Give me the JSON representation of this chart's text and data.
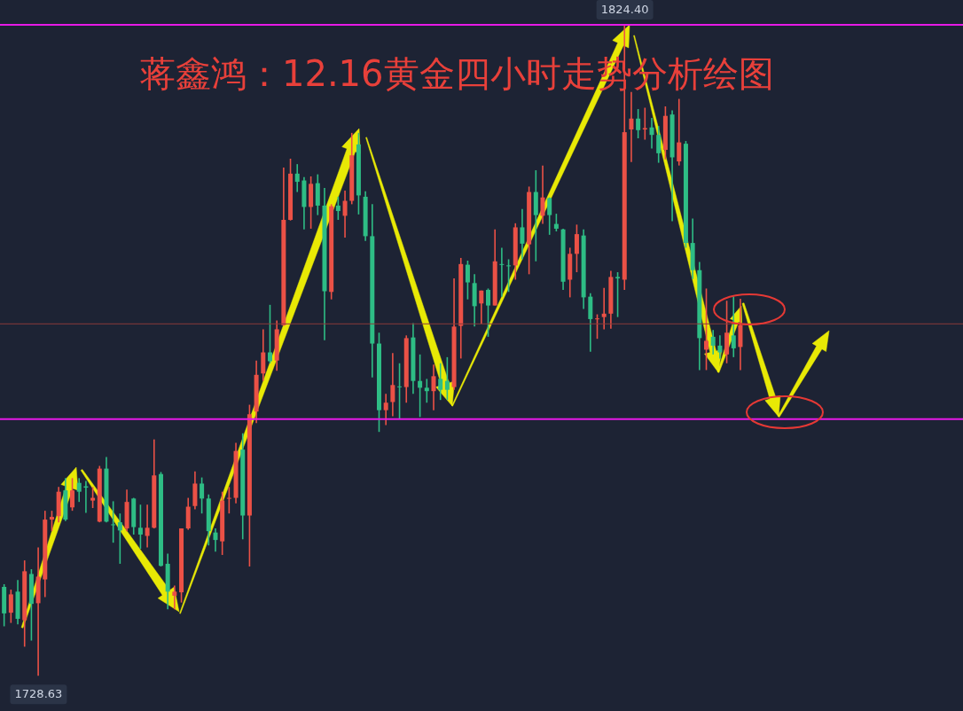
{
  "chart_data": {
    "type": "candlestick",
    "title": "蒋鑫鸿：12.16黄金四小时走势分析绘图",
    "categories": [
      null,
      null,
      null,
      null,
      null,
      null,
      null,
      null,
      null,
      null,
      null,
      null,
      null,
      null,
      null,
      null,
      null,
      null,
      null,
      null,
      null,
      null,
      null,
      null,
      null,
      null,
      null,
      null,
      null,
      null,
      null,
      null,
      null,
      null,
      null,
      null,
      null,
      null,
      null,
      null,
      null,
      null,
      null,
      null,
      null,
      null,
      null,
      null,
      null,
      null,
      null,
      null,
      null,
      null,
      null,
      null,
      null,
      null,
      null,
      null,
      null,
      null,
      null,
      null,
      null,
      null,
      null,
      null,
      null,
      null,
      null,
      null,
      null,
      null,
      null,
      null,
      null,
      null,
      null,
      null,
      null,
      null,
      null,
      null,
      null,
      null,
      null,
      null,
      null,
      null,
      null,
      null,
      null,
      null,
      null,
      null,
      null,
      null,
      null,
      null,
      null,
      null,
      null,
      null,
      null,
      null,
      null,
      null,
      null
    ],
    "ohlc": [
      [
        1741.7,
        1742.1,
        1735.9,
        1737.8
      ],
      [
        1737.9,
        1741.3,
        1736.4,
        1740.6
      ],
      [
        1741.0,
        1742.7,
        1736.2,
        1737.0
      ],
      [
        1736.8,
        1745.6,
        1732.9,
        1744.0
      ],
      [
        1743.6,
        1744.3,
        1733.8,
        1739.2
      ],
      [
        1739.3,
        1747.5,
        1728.63,
        1743.2
      ],
      [
        1742.8,
        1752.9,
        1740.2,
        1751.6
      ],
      [
        1751.6,
        1752.9,
        1749.9,
        1752.0
      ],
      [
        1752.1,
        1756.4,
        1751.2,
        1755.7
      ],
      [
        1755.9,
        1757.7,
        1751.4,
        1751.6
      ],
      [
        1753.4,
        1757.7,
        1752.9,
        1755.9
      ],
      [
        1757.0,
        1757.7,
        1754.2,
        1755.7
      ],
      [
        1756.5,
        1757.3,
        1752.6,
        1756.3
      ],
      [
        1754.4,
        1756.4,
        1753.3,
        1754.8
      ],
      [
        1751.3,
        1759.5,
        1751.2,
        1759.1
      ],
      [
        1759.1,
        1760.8,
        1751.2,
        1751.3
      ],
      [
        1750.9,
        1754.3,
        1748.2,
        1750.8
      ],
      [
        1751.2,
        1752.5,
        1745.1,
        1750.0
      ],
      [
        1750.3,
        1756.0,
        1749.9,
        1754.2
      ],
      [
        1754.7,
        1754.8,
        1749.4,
        1750.5
      ],
      [
        1750.4,
        1753.8,
        1747.3,
        1749.4
      ],
      [
        1749.2,
        1753.8,
        1747.5,
        1750.4
      ],
      [
        1750.4,
        1763.4,
        1750.3,
        1758.1
      ],
      [
        1758.3,
        1758.6,
        1744.7,
        1744.8
      ],
      [
        1745.1,
        1746.6,
        1738.4,
        1741.0
      ],
      [
        1740.4,
        1741.9,
        1738.4,
        1741.0
      ],
      [
        1740.9,
        1750.3,
        1739.4,
        1750.3
      ],
      [
        1750.3,
        1754.8,
        1750.1,
        1753.5
      ],
      [
        1753.6,
        1758.7,
        1753.1,
        1756.9
      ],
      [
        1756.9,
        1757.8,
        1752.5,
        1754.7
      ],
      [
        1754.7,
        1755.3,
        1747.8,
        1749.9
      ],
      [
        1749.7,
        1750.3,
        1746.9,
        1748.6
      ],
      [
        1748.4,
        1755.7,
        1746.4,
        1754.4
      ],
      [
        1754.7,
        1756.4,
        1752.5,
        1754.8
      ],
      [
        1754.8,
        1762.9,
        1754.0,
        1761.7
      ],
      [
        1761.9,
        1764.3,
        1748.7,
        1752.2
      ],
      [
        1752.2,
        1768.5,
        1744.7,
        1767.1
      ],
      [
        1767.5,
        1775.0,
        1765.8,
        1772.9
      ],
      [
        1773.1,
        1779.6,
        1772.0,
        1776.2
      ],
      [
        1776.2,
        1783.2,
        1774.6,
        1774.9
      ],
      [
        1775.0,
        1780.9,
        1773.5,
        1779.6
      ],
      [
        1780.2,
        1803.4,
        1780.1,
        1795.7
      ],
      [
        1795.7,
        1804.7,
        1795.6,
        1802.5
      ],
      [
        1802.5,
        1803.9,
        1799.8,
        1801.3
      ],
      [
        1801.5,
        1802.0,
        1794.3,
        1797.6
      ],
      [
        1797.6,
        1802.1,
        1794.4,
        1801.0
      ],
      [
        1801.1,
        1802.4,
        1796.4,
        1797.8
      ],
      [
        1797.8,
        1800.4,
        1778.0,
        1785.2
      ],
      [
        1785.1,
        1798.0,
        1784.0,
        1797.7
      ],
      [
        1797.8,
        1799.1,
        1795.7,
        1797.0
      ],
      [
        1796.3,
        1800.0,
        1793.1,
        1798.5
      ],
      [
        1798.5,
        1808.5,
        1798.0,
        1805.2
      ],
      [
        1806.8,
        1808.5,
        1796.5,
        1799.3
      ],
      [
        1799.1,
        1799.9,
        1792.6,
        1793.3
      ],
      [
        1793.3,
        1798.0,
        1772.5,
        1777.5
      ],
      [
        1777.5,
        1779.1,
        1764.5,
        1767.7
      ],
      [
        1767.7,
        1770.1,
        1765.5,
        1768.8
      ],
      [
        1768.9,
        1776.1,
        1766.8,
        1771.4
      ],
      [
        1771.2,
        1774.6,
        1766.4,
        1771.1
      ],
      [
        1771.1,
        1778.7,
        1768.8,
        1778.3
      ],
      [
        1778.4,
        1780.5,
        1770.1,
        1772.0
      ],
      [
        1772.0,
        1775.9,
        1766.7,
        1771.0
      ],
      [
        1771.0,
        1772.3,
        1768.8,
        1770.5
      ],
      [
        1770.5,
        1774.4,
        1767.7,
        1772.7
      ],
      [
        1772.3,
        1774.6,
        1769.2,
        1770.7
      ],
      [
        1772.0,
        1775.5,
        1769.2,
        1770.7
      ],
      [
        1771.1,
        1787.1,
        1770.7,
        1780.0
      ],
      [
        1780.1,
        1790.1,
        1775.3,
        1789.2
      ],
      [
        1789.1,
        1789.7,
        1784.0,
        1786.5
      ],
      [
        1786.4,
        1787.7,
        1780.0,
        1783.0
      ],
      [
        1783.4,
        1785.3,
        1780.4,
        1785.3
      ],
      [
        1785.4,
        1785.6,
        1778.5,
        1783.1
      ],
      [
        1783.1,
        1794.3,
        1783.1,
        1789.6
      ],
      [
        1789.2,
        1791.6,
        1784.4,
        1789.1
      ],
      [
        1789.0,
        1789.9,
        1785.1,
        1788.9
      ],
      [
        1789.0,
        1795.2,
        1786.9,
        1794.6
      ],
      [
        1794.6,
        1797.3,
        1789.9,
        1792.2
      ],
      [
        1792.1,
        1800.6,
        1787.7,
        1799.8
      ],
      [
        1799.8,
        1803.0,
        1789.6,
        1796.4
      ],
      [
        1796.3,
        1803.7,
        1795.1,
        1799.0
      ],
      [
        1798.9,
        1799.0,
        1793.5,
        1796.4
      ],
      [
        1795.1,
        1796.6,
        1794.0,
        1794.4
      ],
      [
        1794.3,
        1794.4,
        1785.4,
        1786.6
      ],
      [
        1786.9,
        1791.6,
        1784.3,
        1790.7
      ],
      [
        1790.7,
        1795.0,
        1788.0,
        1793.6
      ],
      [
        1793.4,
        1794.3,
        1782.6,
        1784.3
      ],
      [
        1784.4,
        1784.9,
        1776.3,
        1781.1
      ],
      [
        1781.1,
        1781.8,
        1778.2,
        1781.2
      ],
      [
        1781.4,
        1785.7,
        1779.6,
        1781.9
      ],
      [
        1781.9,
        1788.2,
        1779.7,
        1787.3
      ],
      [
        1787.3,
        1788.0,
        1781.4,
        1787.1
      ],
      [
        1786.9,
        1824.4,
        1785.4,
        1808.6
      ],
      [
        1809.0,
        1814.5,
        1804.2,
        1810.6
      ],
      [
        1810.6,
        1812.0,
        1807.7,
        1808.9
      ],
      [
        1809.0,
        1812.2,
        1807.5,
        1809.2
      ],
      [
        1809.3,
        1810.7,
        1806.2,
        1808.2
      ],
      [
        1808.2,
        1809.5,
        1804.1,
        1805.5
      ],
      [
        1806.0,
        1812.4,
        1804.6,
        1811.0
      ],
      [
        1811.2,
        1811.8,
        1795.5,
        1804.9
      ],
      [
        1804.3,
        1813.5,
        1803.7,
        1807.1
      ],
      [
        1806.9,
        1807.3,
        1791.6,
        1792.3
      ],
      [
        1792.3,
        1795.9,
        1787.0,
        1788.3
      ],
      [
        1788.3,
        1789.5,
        1773.6,
        1778.3
      ],
      [
        1776.6,
        1785.6,
        1773.6,
        1777.9
      ],
      [
        1778.5,
        1779.5,
        1775.9,
        1777.2
      ],
      [
        1777.2,
        1778.7,
        1775.3,
        1776.2
      ],
      [
        1775.9,
        1783.8,
        1774.6,
        1779.1
      ],
      [
        1778.7,
        1784.4,
        1775.5,
        1776.8
      ],
      [
        1777.0,
        1784.1,
        1773.6,
        1780.2
      ]
    ],
    "colors": [
      "#2ebd85",
      "#eb5146",
      "#2ebd85",
      "#eb5146",
      "#2ebd85",
      "#eb5146",
      "#eb5146",
      "#eb5146",
      "#eb5146",
      "#2ebd85",
      "#eb5146",
      "#2ebd85",
      "#2ebd85",
      "#eb5146",
      "#eb5146",
      "#2ebd85",
      "#2ebd85",
      "#2ebd85",
      "#eb5146",
      "#2ebd85",
      "#2ebd85",
      "#eb5146",
      "#eb5146",
      "#2ebd85",
      "#2ebd85",
      "#eb5146",
      "#eb5146",
      "#eb5146",
      "#eb5146",
      "#2ebd85",
      "#2ebd85",
      "#2ebd85",
      "#eb5146",
      "#eb5146",
      "#eb5146",
      "#2ebd85",
      "#eb5146",
      "#eb5146",
      "#eb5146",
      "#2ebd85",
      "#eb5146",
      "#eb5146",
      "#eb5146",
      "#2ebd85",
      "#2ebd85",
      "#eb5146",
      "#2ebd85",
      "#2ebd85",
      "#eb5146",
      "#2ebd85",
      "#eb5146",
      "#eb5146",
      "#2ebd85",
      "#2ebd85",
      "#2ebd85",
      "#2ebd85",
      "#eb5146",
      "#eb5146",
      "#2ebd85",
      "#eb5146",
      "#2ebd85",
      "#2ebd85",
      "#2ebd85",
      "#eb5146",
      "#2ebd85",
      "#2ebd85",
      "#eb5146",
      "#eb5146",
      "#2ebd85",
      "#2ebd85",
      "#eb5146",
      "#2ebd85",
      "#eb5146",
      "#2ebd85",
      "#2ebd85",
      "#eb5146",
      "#2ebd85",
      "#eb5146",
      "#2ebd85",
      "#eb5146",
      "#2ebd85",
      "#2ebd85",
      "#2ebd85",
      "#eb5146",
      "#eb5146",
      "#2ebd85",
      "#2ebd85",
      "#eb5146",
      "#eb5146",
      "#eb5146",
      "#2ebd85",
      "#eb5146",
      "#eb5146",
      "#2ebd85",
      "#eb5146",
      "#2ebd85",
      "#2ebd85",
      "#eb5146",
      "#2ebd85",
      "#eb5146",
      "#2ebd85",
      "#2ebd85",
      "#2ebd85",
      "#eb5146",
      "#2ebd85",
      "#2ebd85",
      "#eb5146",
      "#2ebd85",
      "#eb5146"
    ],
    "ref_lines": [
      {
        "axis": "y",
        "value": 1824.4,
        "color": "#e619e6"
      },
      {
        "axis": "y",
        "value": 1780.4,
        "color": "#8a3a3a"
      },
      {
        "axis": "y",
        "value": 1766.4,
        "color": "#e619e6"
      }
    ],
    "annotations": [
      {
        "text": "1824.40",
        "y": 1824.4
      },
      {
        "text": "1728.63",
        "y": 1728.63
      }
    ]
  }
}
